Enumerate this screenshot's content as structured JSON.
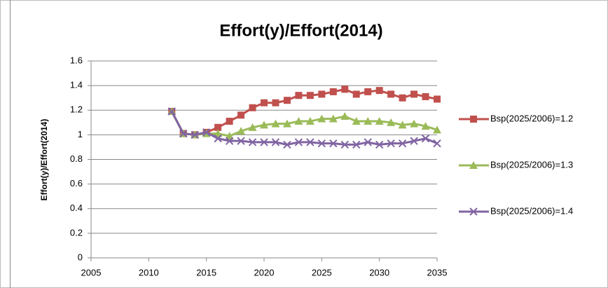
{
  "chart_data": {
    "type": "line",
    "title": "Effort(y)/Effort(2014)",
    "y_label": "Effort(y)/Effort(2014)",
    "x": [
      2012,
      2013,
      2014,
      2015,
      2016,
      2017,
      2018,
      2019,
      2020,
      2021,
      2022,
      2023,
      2024,
      2025,
      2026,
      2027,
      2028,
      2029,
      2030,
      2031,
      2032,
      2033,
      2034,
      2035
    ],
    "series": [
      {
        "name": "Bsp(2025/2006)=1.2",
        "color": "#c0504d",
        "marker": "square",
        "values": [
          1.19,
          1.01,
          1.0,
          1.02,
          1.06,
          1.11,
          1.16,
          1.22,
          1.26,
          1.26,
          1.28,
          1.32,
          1.32,
          1.33,
          1.35,
          1.37,
          1.33,
          1.35,
          1.36,
          1.33,
          1.3,
          1.33,
          1.31,
          1.29
        ]
      },
      {
        "name": "Bsp(2025/2006)=1.3",
        "color": "#9bbb59",
        "marker": "triangle",
        "values": [
          1.19,
          1.01,
          1.0,
          1.01,
          1.01,
          0.99,
          1.03,
          1.06,
          1.08,
          1.09,
          1.09,
          1.11,
          1.11,
          1.13,
          1.13,
          1.15,
          1.11,
          1.11,
          1.11,
          1.1,
          1.08,
          1.09,
          1.07,
          1.04
        ]
      },
      {
        "name": "Bsp(2025/2006)=1.4",
        "color": "#8064a2",
        "marker": "x",
        "values": [
          1.19,
          1.01,
          1.0,
          1.02,
          0.97,
          0.95,
          0.95,
          0.94,
          0.94,
          0.94,
          0.92,
          0.94,
          0.94,
          0.93,
          0.93,
          0.92,
          0.92,
          0.94,
          0.92,
          0.93,
          0.93,
          0.95,
          0.97,
          0.93
        ]
      }
    ],
    "xlim": [
      2005,
      2035
    ],
    "xticks": [
      2005,
      2010,
      2015,
      2020,
      2025,
      2030,
      2035
    ],
    "ylim": [
      0,
      1.6
    ],
    "yticks": [
      0,
      0.2,
      0.4,
      0.6,
      0.8,
      1,
      1.2,
      1.4,
      1.6
    ],
    "grid": true,
    "legend": "right"
  }
}
